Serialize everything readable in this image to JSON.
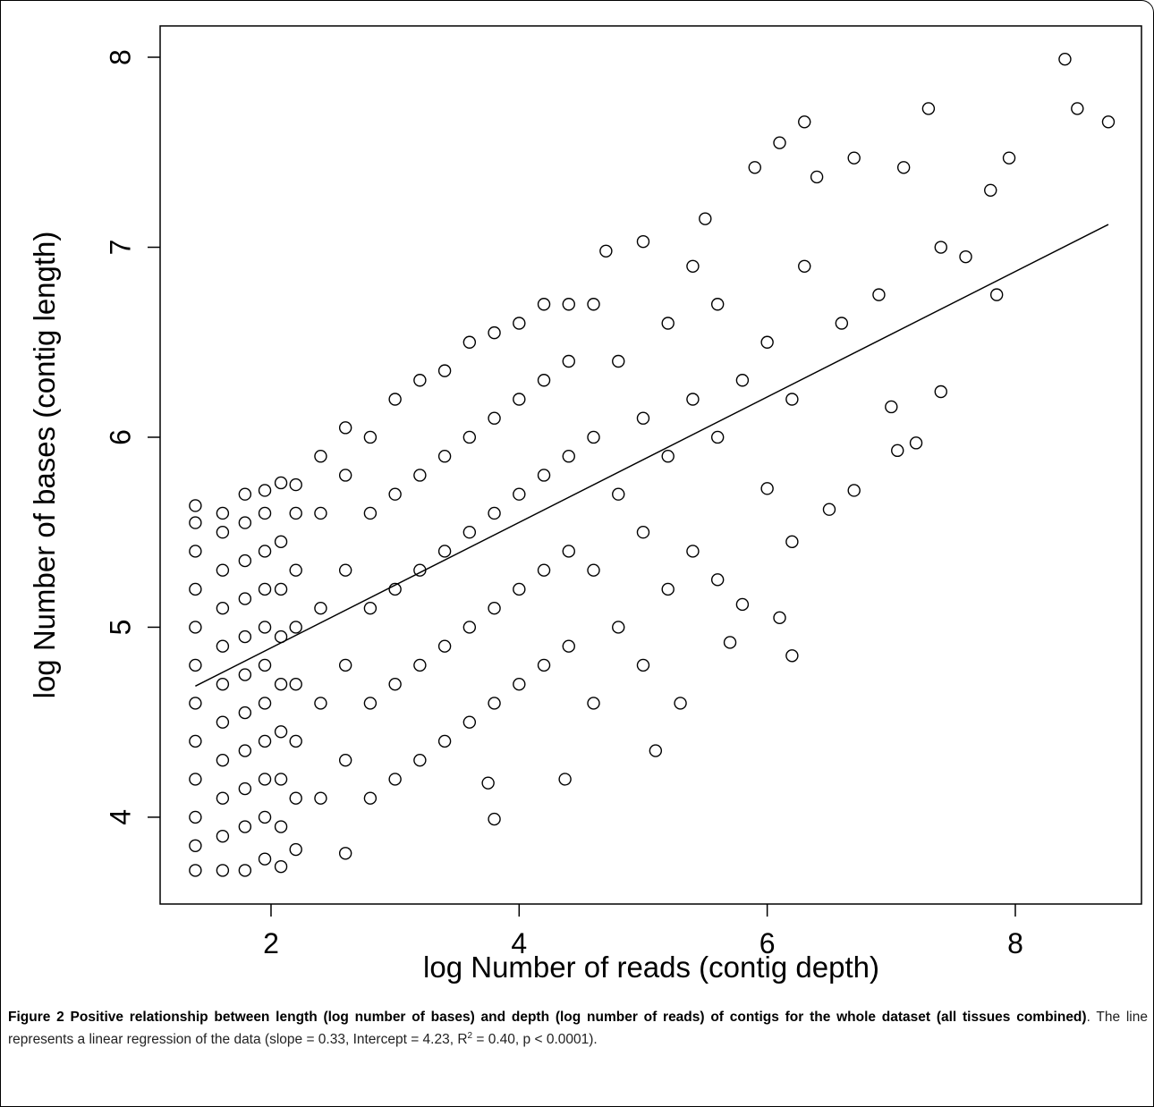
{
  "chart_data": {
    "type": "scatter",
    "x_label": "log Number of reads (contig depth)",
    "y_label": "log Number of bases (contig length)",
    "xlim": [
      1.106,
      9.017
    ],
    "ylim": [
      3.543,
      8.165
    ],
    "xticks": [
      2,
      4,
      6,
      8
    ],
    "yticks": [
      4,
      5,
      6,
      7,
      8
    ],
    "color": "#000000",
    "x": [
      1.39,
      1.39,
      1.39,
      1.39,
      1.39,
      1.39,
      1.39,
      1.39,
      1.39,
      1.39,
      1.39,
      1.39,
      1.61,
      1.61,
      1.61,
      1.61,
      1.61,
      1.61,
      1.61,
      1.61,
      1.61,
      1.61,
      1.61,
      1.79,
      1.79,
      1.79,
      1.79,
      1.79,
      1.79,
      1.79,
      1.79,
      1.79,
      1.79,
      1.79,
      1.95,
      1.95,
      1.95,
      1.95,
      1.95,
      1.95,
      1.95,
      1.95,
      1.95,
      1.95,
      1.95,
      2.08,
      2.08,
      2.08,
      2.08,
      2.08,
      2.08,
      2.08,
      2.08,
      2.08,
      2.2,
      2.2,
      2.2,
      2.2,
      2.2,
      2.2,
      2.2,
      2.2,
      2.4,
      2.4,
      2.4,
      2.4,
      2.4,
      2.6,
      2.6,
      2.6,
      2.6,
      2.6,
      2.6,
      2.8,
      2.8,
      2.8,
      2.8,
      2.8,
      3.0,
      3.0,
      3.0,
      3.0,
      3.0,
      3.2,
      3.2,
      3.2,
      3.2,
      3.2,
      3.4,
      3.4,
      3.4,
      3.4,
      3.4,
      3.6,
      3.6,
      3.6,
      3.6,
      3.6,
      3.8,
      3.8,
      3.8,
      3.8,
      3.8,
      3.8,
      3.75,
      4.0,
      4.0,
      4.0,
      4.0,
      4.0,
      4.2,
      4.2,
      4.2,
      4.2,
      4.2,
      4.37,
      4.4,
      4.4,
      4.4,
      4.4,
      4.4,
      4.6,
      4.6,
      4.6,
      4.6,
      4.7,
      4.8,
      4.8,
      4.8,
      5.0,
      5.0,
      5.0,
      5.0,
      5.1,
      5.2,
      5.2,
      5.2,
      5.3,
      5.4,
      5.4,
      5.4,
      5.5,
      5.6,
      5.6,
      5.6,
      5.7,
      5.8,
      5.8,
      5.9,
      6.0,
      6.0,
      6.1,
      6.1,
      6.2,
      6.2,
      6.2,
      6.3,
      6.3,
      6.4,
      6.5,
      6.6,
      6.7,
      6.7,
      6.9,
      7.0,
      7.05,
      7.1,
      7.2,
      7.3,
      7.4,
      7.4,
      7.6,
      7.8,
      7.85,
      7.95,
      8.4,
      8.5,
      8.75
    ],
    "values": [
      3.72,
      3.85,
      4.0,
      4.2,
      4.4,
      4.6,
      4.8,
      5.0,
      5.2,
      5.4,
      5.55,
      5.64,
      3.72,
      3.9,
      4.1,
      4.3,
      4.5,
      4.7,
      4.9,
      5.1,
      5.3,
      5.5,
      5.6,
      3.72,
      3.95,
      4.15,
      4.35,
      4.55,
      4.75,
      4.95,
      5.15,
      5.35,
      5.55,
      5.7,
      3.78,
      4.0,
      4.2,
      4.4,
      4.6,
      4.8,
      5.0,
      5.2,
      5.4,
      5.6,
      5.72,
      3.74,
      3.95,
      4.2,
      4.45,
      4.7,
      4.95,
      5.2,
      5.45,
      5.76,
      3.83,
      4.1,
      4.4,
      4.7,
      5.0,
      5.3,
      5.6,
      5.75,
      4.1,
      4.6,
      5.1,
      5.6,
      5.9,
      3.81,
      4.3,
      4.8,
      5.3,
      5.8,
      6.05,
      4.1,
      4.6,
      5.1,
      5.6,
      6.0,
      4.2,
      4.7,
      5.2,
      5.7,
      6.2,
      4.3,
      4.8,
      5.3,
      5.8,
      6.3,
      4.4,
      4.9,
      5.4,
      5.9,
      6.35,
      4.5,
      5.0,
      5.5,
      6.0,
      6.5,
      4.6,
      5.1,
      5.6,
      6.1,
      6.55,
      3.99,
      4.18,
      4.7,
      5.2,
      5.7,
      6.2,
      6.6,
      4.8,
      5.3,
      5.8,
      6.3,
      6.7,
      4.2,
      4.9,
      5.4,
      5.9,
      6.4,
      6.7,
      4.6,
      5.3,
      6.0,
      6.7,
      6.98,
      5.0,
      5.7,
      6.4,
      4.8,
      5.5,
      6.1,
      7.03,
      4.35,
      5.2,
      5.9,
      6.6,
      4.6,
      5.4,
      6.2,
      6.9,
      7.15,
      5.25,
      6.0,
      6.7,
      4.92,
      5.12,
      6.3,
      7.42,
      5.73,
      6.5,
      7.55,
      5.05,
      4.85,
      5.45,
      6.2,
      7.66,
      6.9,
      7.37,
      5.62,
      6.6,
      5.72,
      7.47,
      6.75,
      6.16,
      5.93,
      7.42,
      5.97,
      7.73,
      6.24,
      7.0,
      6.95,
      7.3,
      6.75,
      7.47,
      7.99,
      7.73,
      7.66
    ],
    "regression_line": {
      "x": [
        1.39,
        8.75
      ],
      "values": [
        4.69,
        7.12
      ]
    }
  },
  "caption": {
    "label": "Figure 2",
    "title": "Positive relationship between length (log number of bases) and depth (log number of reads) of contigs for the whole dataset (all tissues combined)",
    "text": ". The line represents a linear regression of the data (slope = 0.33, Intercept = 4.23, R",
    "superscript": "2",
    "text_end": " = 0.40, p < 0.0001)."
  }
}
